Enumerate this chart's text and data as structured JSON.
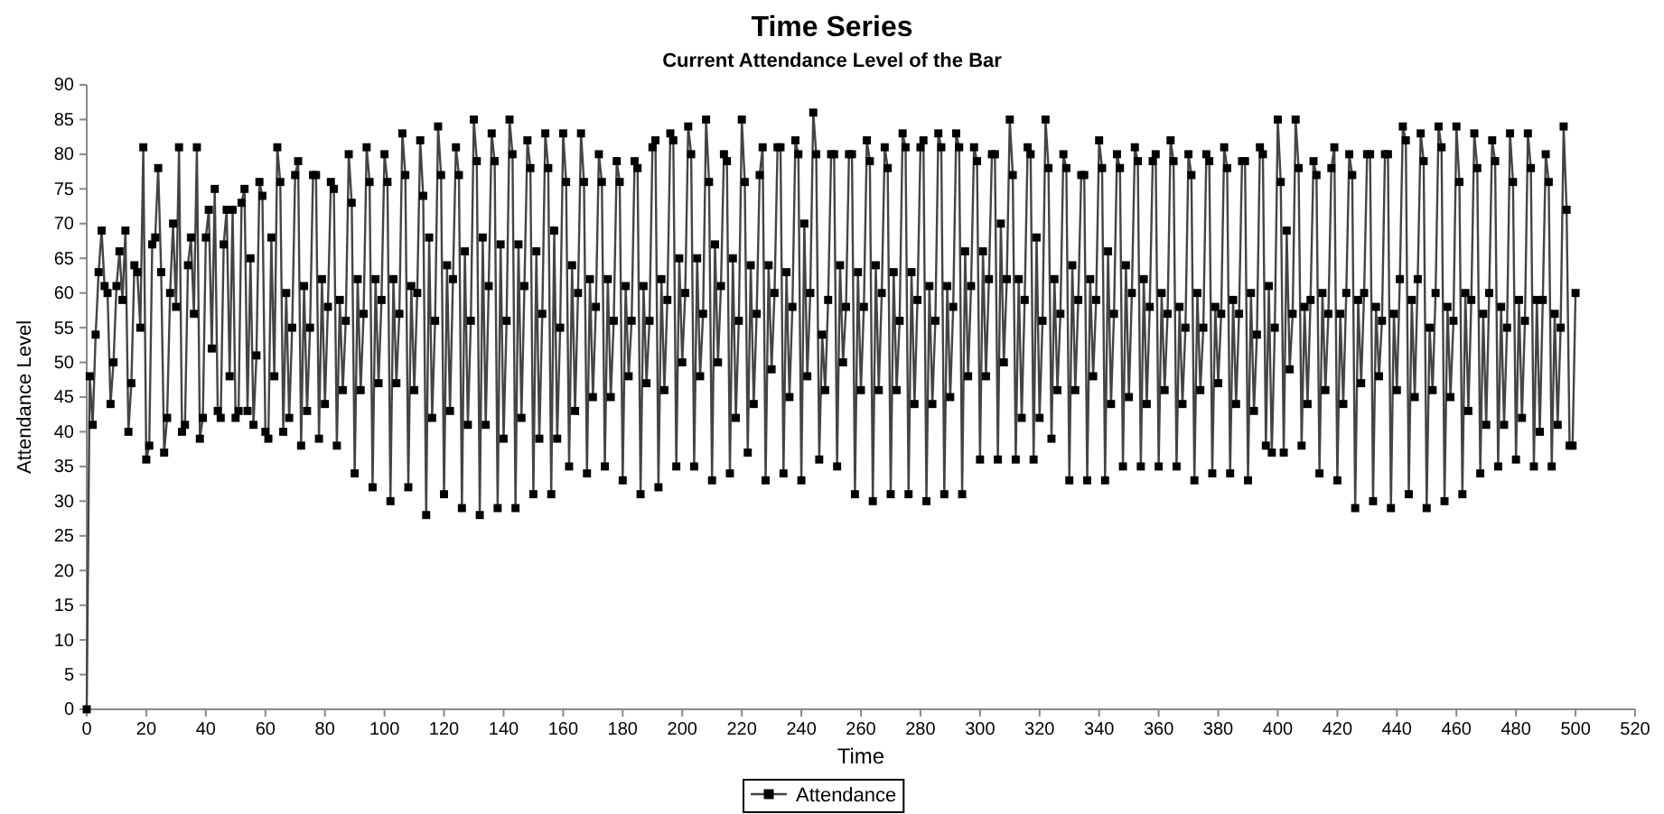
{
  "chart_data": {
    "type": "line",
    "title": "Time Series",
    "subtitle": "Current Attendance Level of the Bar",
    "xlabel": "Time",
    "ylabel": "Attendance Level",
    "x": [
      0,
      1,
      2,
      3,
      4,
      5,
      6,
      7,
      8,
      9,
      10,
      11,
      12,
      13,
      14,
      15,
      16,
      17,
      18,
      19,
      20,
      21,
      22,
      23,
      24,
      25,
      26,
      27,
      28,
      29,
      30,
      31,
      32,
      33,
      34,
      35,
      36,
      37,
      38,
      39,
      40,
      41,
      42,
      43,
      44,
      45,
      46,
      47,
      48,
      49,
      50,
      51,
      52,
      53,
      54,
      55,
      56,
      57,
      58,
      59,
      60,
      61,
      62,
      63,
      64,
      65,
      66,
      67,
      68,
      69,
      70,
      71,
      72,
      73,
      74,
      75,
      76,
      77,
      78,
      79,
      80,
      81,
      82,
      83,
      84,
      85,
      86,
      87,
      88,
      89,
      90,
      91,
      92,
      93,
      94,
      95,
      96,
      97,
      98,
      99,
      100,
      101,
      102,
      103,
      104,
      105,
      106,
      107,
      108,
      109,
      110,
      111,
      112,
      113,
      114,
      115,
      116,
      117,
      118,
      119,
      120,
      121,
      122,
      123,
      124,
      125,
      126,
      127,
      128,
      129,
      130,
      131,
      132,
      133,
      134,
      135,
      136,
      137,
      138,
      139,
      140,
      141,
      142,
      143,
      144,
      145,
      146,
      147,
      148,
      149,
      150,
      151,
      152,
      153,
      154,
      155,
      156,
      157,
      158,
      159,
      160,
      161,
      162,
      163,
      164,
      165,
      166,
      167,
      168,
      169,
      170,
      171,
      172,
      173,
      174,
      175,
      176,
      177,
      178,
      179,
      180,
      181,
      182,
      183,
      184,
      185,
      186,
      187,
      188,
      189,
      190,
      191,
      192,
      193,
      194,
      195,
      196,
      197,
      198,
      199,
      200,
      201,
      202,
      203,
      204,
      205,
      206,
      207,
      208,
      209,
      210,
      211,
      212,
      213,
      214,
      215,
      216,
      217,
      218,
      219,
      220,
      221,
      222,
      223,
      224,
      225,
      226,
      227,
      228,
      229,
      230,
      231,
      232,
      233,
      234,
      235,
      236,
      237,
      238,
      239,
      240,
      241,
      242,
      243,
      244,
      245,
      246,
      247,
      248,
      249,
      250,
      251,
      252,
      253,
      254,
      255,
      256,
      257,
      258,
      259,
      260,
      261,
      262,
      263,
      264,
      265,
      266,
      267,
      268,
      269,
      270,
      271,
      272,
      273,
      274,
      275,
      276,
      277,
      278,
      279,
      280,
      281,
      282,
      283,
      284,
      285,
      286,
      287,
      288,
      289,
      290,
      291,
      292,
      293,
      294,
      295,
      296,
      297,
      298,
      299,
      300,
      301,
      302,
      303,
      304,
      305,
      306,
      307,
      308,
      309,
      310,
      311,
      312,
      313,
      314,
      315,
      316,
      317,
      318,
      319,
      320,
      321,
      322,
      323,
      324,
      325,
      326,
      327,
      328,
      329,
      330,
      331,
      332,
      333,
      334,
      335,
      336,
      337,
      338,
      339,
      340,
      341,
      342,
      343,
      344,
      345,
      346,
      347,
      348,
      349,
      350,
      351,
      352,
      353,
      354,
      355,
      356,
      357,
      358,
      359,
      360,
      361,
      362,
      363,
      364,
      365,
      366,
      367,
      368,
      369,
      370,
      371,
      372,
      373,
      374,
      375,
      376,
      377,
      378,
      379,
      380,
      381,
      382,
      383,
      384,
      385,
      386,
      387,
      388,
      389,
      390,
      391,
      392,
      393,
      394,
      395,
      396,
      397,
      398,
      399,
      400,
      401,
      402,
      403,
      404,
      405,
      406,
      407,
      408,
      409,
      410,
      411,
      412,
      413,
      414,
      415,
      416,
      417,
      418,
      419,
      420,
      421,
      422,
      423,
      424,
      425,
      426,
      427,
      428,
      429,
      430,
      431,
      432,
      433,
      434,
      435,
      436,
      437,
      438,
      439,
      440,
      441,
      442,
      443,
      444,
      445,
      446,
      447,
      448,
      449,
      450,
      451,
      452,
      453,
      454,
      455,
      456,
      457,
      458,
      459,
      460,
      461,
      462,
      463,
      464,
      465,
      466,
      467,
      468,
      469,
      470,
      471,
      472,
      473,
      474,
      475,
      476,
      477,
      478,
      479,
      480,
      481,
      482,
      483,
      484,
      485,
      486,
      487,
      488,
      489,
      490,
      491,
      492,
      493,
      494,
      495,
      496,
      497,
      498,
      499,
      500
    ],
    "series": [
      {
        "name": "Attendance",
        "color": "#000000",
        "values": [
          0,
          48,
          41,
          54,
          63,
          69,
          61,
          60,
          44,
          50,
          61,
          66,
          59,
          69,
          40,
          47,
          64,
          63,
          55,
          81,
          36,
          38,
          67,
          68,
          78,
          63,
          37,
          42,
          60,
          70,
          58,
          81,
          40,
          41,
          64,
          68,
          57,
          81,
          39,
          42,
          68,
          72,
          52,
          75,
          43,
          42,
          67,
          72,
          48,
          72,
          42,
          43,
          73,
          75,
          43,
          65,
          41,
          51,
          76,
          74,
          40,
          39,
          68,
          48,
          81,
          76,
          40,
          60,
          42,
          55,
          77,
          79,
          38,
          61,
          43,
          55,
          77,
          77,
          39,
          62,
          44,
          58,
          76,
          75,
          38,
          59,
          46,
          56,
          80,
          73,
          34,
          62,
          46,
          57,
          81,
          76,
          32,
          62,
          47,
          59,
          80,
          76,
          30,
          62,
          47,
          57,
          83,
          77,
          32,
          61,
          46,
          60,
          82,
          74,
          28,
          68,
          42,
          56,
          84,
          77,
          31,
          64,
          43,
          62,
          81,
          77,
          29,
          66,
          41,
          56,
          85,
          79,
          28,
          68,
          41,
          61,
          83,
          79,
          29,
          67,
          39,
          56,
          85,
          80,
          29,
          67,
          42,
          61,
          82,
          78,
          31,
          66,
          39,
          57,
          83,
          78,
          31,
          69,
          39,
          55,
          83,
          76,
          35,
          64,
          43,
          60,
          83,
          76,
          34,
          62,
          45,
          58,
          80,
          76,
          35,
          62,
          45,
          56,
          79,
          76,
          33,
          61,
          48,
          56,
          79,
          78,
          31,
          61,
          47,
          56,
          81,
          82,
          32,
          62,
          46,
          59,
          83,
          82,
          35,
          65,
          50,
          60,
          84,
          80,
          35,
          65,
          48,
          57,
          85,
          76,
          33,
          67,
          50,
          61,
          80,
          79,
          34,
          65,
          42,
          56,
          85,
          76,
          37,
          64,
          44,
          57,
          77,
          81,
          33,
          64,
          49,
          60,
          81,
          81,
          34,
          63,
          45,
          58,
          82,
          80,
          33,
          70,
          48,
          60,
          86,
          80,
          36,
          54,
          46,
          59,
          80,
          80,
          35,
          64,
          50,
          58,
          80,
          80,
          31,
          63,
          46,
          58,
          82,
          79,
          30,
          64,
          46,
          60,
          81,
          78,
          31,
          63,
          46,
          56,
          83,
          81,
          31,
          63,
          44,
          59,
          81,
          82,
          30,
          61,
          44,
          56,
          83,
          81,
          31,
          61,
          45,
          58,
          83,
          81,
          31,
          66,
          48,
          61,
          81,
          79,
          36,
          66,
          48,
          62,
          80,
          80,
          36,
          70,
          50,
          62,
          85,
          77,
          36,
          62,
          42,
          59,
          81,
          80,
          36,
          68,
          42,
          56,
          85,
          78,
          39,
          62,
          46,
          57,
          80,
          78,
          33,
          64,
          46,
          59,
          77,
          77,
          33,
          62,
          48,
          59,
          82,
          78,
          33,
          66,
          44,
          57,
          80,
          78,
          35,
          64,
          45,
          60,
          81,
          79,
          35,
          62,
          44,
          58,
          79,
          80,
          35,
          60,
          46,
          57,
          82,
          79,
          35,
          58,
          44,
          55,
          80,
          77,
          33,
          60,
          46,
          55,
          80,
          79,
          34,
          58,
          47,
          57,
          81,
          78,
          34,
          59,
          44,
          57,
          79,
          79,
          33,
          60,
          43,
          54,
          81,
          80,
          38,
          61,
          37,
          55,
          85,
          76,
          37,
          69,
          49,
          57,
          85,
          78,
          38,
          58,
          44,
          59,
          79,
          77,
          34,
          60,
          46,
          57,
          78,
          81,
          33,
          57,
          44,
          60,
          80,
          77,
          29,
          59,
          47,
          60,
          80,
          80,
          30,
          58,
          48,
          56,
          80,
          80,
          29,
          57,
          46,
          62,
          84,
          82,
          31,
          59,
          45,
          62,
          83,
          79,
          29,
          55,
          46,
          60,
          84,
          81,
          30,
          58,
          45,
          56,
          84,
          76,
          31,
          60,
          43,
          59,
          83,
          78,
          34,
          57,
          41,
          60,
          82,
          79,
          35,
          58,
          41,
          55,
          83,
          76,
          36,
          59,
          42,
          56,
          83,
          78,
          35,
          59,
          40,
          59,
          80,
          76,
          35,
          57,
          41,
          55,
          84,
          72,
          38,
          38,
          60
        ]
      }
    ],
    "xlim": [
      0,
      520
    ],
    "xticks": [
      0,
      20,
      40,
      60,
      80,
      100,
      120,
      140,
      160,
      180,
      200,
      220,
      240,
      260,
      280,
      300,
      320,
      340,
      360,
      380,
      400,
      420,
      440,
      460,
      480,
      500,
      520
    ],
    "ylim": [
      0,
      90
    ],
    "yticks": [
      0,
      5,
      10,
      15,
      20,
      25,
      30,
      35,
      40,
      45,
      50,
      55,
      60,
      65,
      70,
      75,
      80,
      85,
      90
    ],
    "grid": false,
    "legend": "bottom",
    "marker": "square",
    "line_style": "solid"
  }
}
